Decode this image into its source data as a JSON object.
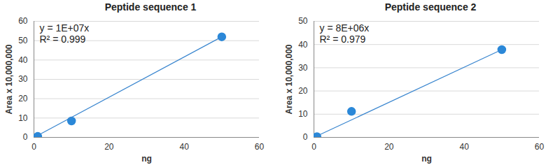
{
  "chart_data": [
    {
      "type": "scatter",
      "title": "Peptide sequence 1",
      "x_label": "ng",
      "y_label": "Area x 10,000,000",
      "xlim": [
        0,
        60
      ],
      "xticks": [
        0,
        20,
        40,
        60
      ],
      "ylim": [
        0,
        60
      ],
      "yticks": [
        0,
        10,
        20,
        30,
        40,
        50,
        60
      ],
      "grid": true,
      "annotations": [
        "y = 1E+07x",
        "R² = 0.999"
      ],
      "series": [
        {
          "type": "scatter",
          "marker": "circle",
          "color": "#2b88d8",
          "x": [
            1,
            10,
            50
          ],
          "values": [
            0.5,
            8.5,
            52
          ]
        },
        {
          "type": "line",
          "line_style": "solid",
          "color": "#3a86cf",
          "x": [
            1,
            50
          ],
          "values": [
            1,
            52
          ]
        }
      ]
    },
    {
      "type": "scatter",
      "title": "Peptide sequence 2",
      "x_label": "ng",
      "y_label": "Area x 10,000,000",
      "xlim": [
        0,
        60
      ],
      "xticks": [
        0,
        20,
        40,
        60
      ],
      "ylim": [
        0,
        50
      ],
      "yticks": [
        0,
        10,
        20,
        30,
        40,
        50
      ],
      "grid": true,
      "annotations": [
        "y = 8E+06x",
        "R² = 0.979"
      ],
      "series": [
        {
          "type": "scatter",
          "marker": "circle",
          "color": "#2b88d8",
          "x": [
            0.8,
            10,
            50
          ],
          "values": [
            0.3,
            11.2,
            37.8
          ]
        },
        {
          "type": "line",
          "line_style": "solid",
          "color": "#3a86cf",
          "x": [
            0.8,
            50
          ],
          "values": [
            0.6,
            37.8
          ]
        }
      ]
    }
  ]
}
